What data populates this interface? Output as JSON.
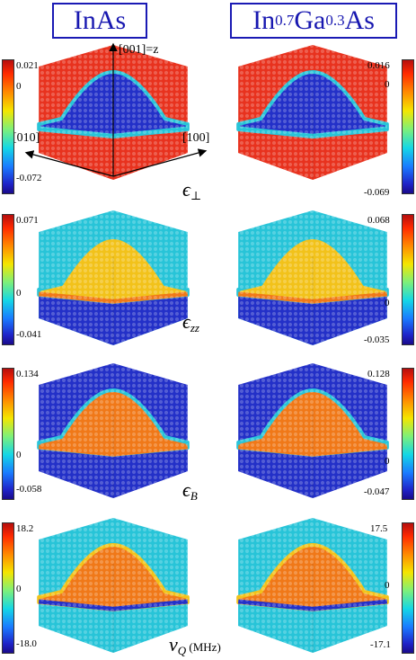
{
  "headers": [
    {
      "main": "InAs",
      "sub": "",
      "tail": ""
    },
    {
      "main": "In",
      "sub": "0.7",
      "mid": "Ga",
      "sub2": "0.3",
      "tail": "As"
    }
  ],
  "axes": {
    "z": "[001]=z",
    "y": "[010]",
    "x": "[100]"
  },
  "rows": [
    {
      "label_main": "ϵ",
      "label_sub": "⊥",
      "left": {
        "max": "0.021",
        "zero": "0",
        "min": "-0.072"
      },
      "right": {
        "max": "0.016",
        "zero": "0",
        "min": "-0.069"
      }
    },
    {
      "label_main": "ϵ",
      "label_sub": "zz",
      "left": {
        "max": "0.071",
        "zero": "0",
        "min": "-0.041"
      },
      "right": {
        "max": "0.068",
        "zero": "0",
        "min": "-0.035"
      }
    },
    {
      "label_main": "ϵ",
      "label_sub": "B",
      "left": {
        "max": "0.134",
        "zero": "0",
        "min": "-0.058"
      },
      "right": {
        "max": "0.128",
        "zero": "0",
        "min": "-0.047"
      }
    },
    {
      "label_main": "ν",
      "label_sub": "Q",
      "label_unit": " (MHz)",
      "left": {
        "max": "18.2",
        "zero": "0",
        "min": "-18.0"
      },
      "right": {
        "max": "17.5",
        "zero": "0",
        "min": "-17.1"
      }
    }
  ],
  "colors": {
    "frame": "#1a1ab4",
    "red": "#e8321e",
    "blue": "#2330c8",
    "cyan": "#27c4d8",
    "yellow": "#f2c21a",
    "orange": "#f07818"
  }
}
